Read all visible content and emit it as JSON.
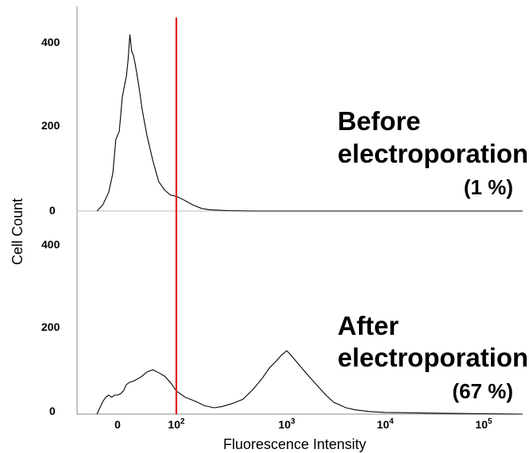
{
  "chart_data": {
    "type": "line",
    "xlabel": "Fluorescence Intensity",
    "ylabel": "Cell Count",
    "x_scale": "biexponential",
    "x_ticks": [
      {
        "value": 0,
        "label": "0"
      },
      {
        "value": 100,
        "label": "10",
        "exp": "2"
      },
      {
        "value": 1000,
        "label": "10",
        "exp": "3"
      },
      {
        "value": 10000,
        "label": "10",
        "exp": "4"
      },
      {
        "value": 100000,
        "label": "10",
        "exp": "5"
      }
    ],
    "gate": {
      "x": 100,
      "color": "#e02020"
    },
    "panels": [
      {
        "name": "before",
        "ylim": [
          0,
          450
        ],
        "y_ticks": [
          0,
          200,
          400
        ],
        "annotation": {
          "line1": "Before",
          "line2": "electroporation",
          "pct": "(1 %)"
        },
        "points": [
          [
            -35,
            0
          ],
          [
            -25,
            15
          ],
          [
            -15,
            45
          ],
          [
            -8,
            90
          ],
          [
            -3,
            170
          ],
          [
            0,
            180
          ],
          [
            3,
            190
          ],
          [
            8,
            270
          ],
          [
            12,
            300
          ],
          [
            15,
            320
          ],
          [
            18,
            360
          ],
          [
            21,
            420
          ],
          [
            24,
            380
          ],
          [
            27,
            370
          ],
          [
            30,
            350
          ],
          [
            36,
            300
          ],
          [
            42,
            240
          ],
          [
            50,
            180
          ],
          [
            60,
            120
          ],
          [
            70,
            70
          ],
          [
            80,
            50
          ],
          [
            90,
            38
          ],
          [
            100,
            35
          ],
          [
            120,
            25
          ],
          [
            140,
            15
          ],
          [
            170,
            6
          ],
          [
            200,
            3
          ],
          [
            300,
            1
          ],
          [
            500,
            0
          ],
          [
            1000,
            0
          ],
          [
            3000,
            0
          ],
          [
            10000,
            0
          ],
          [
            100000,
            0
          ],
          [
            250000,
            0
          ]
        ]
      },
      {
        "name": "after",
        "ylim": [
          0,
          450
        ],
        "y_ticks": [
          0,
          200,
          400
        ],
        "annotation": {
          "line1": "After",
          "line2": "electroporation",
          "pct": "(67 %)"
        },
        "points": [
          [
            -35,
            0
          ],
          [
            -30,
            15
          ],
          [
            -25,
            30
          ],
          [
            -20,
            40
          ],
          [
            -15,
            45
          ],
          [
            -10,
            40
          ],
          [
            -5,
            45
          ],
          [
            0,
            45
          ],
          [
            5,
            48
          ],
          [
            10,
            55
          ],
          [
            15,
            70
          ],
          [
            20,
            75
          ],
          [
            30,
            80
          ],
          [
            40,
            88
          ],
          [
            50,
            100
          ],
          [
            60,
            105
          ],
          [
            70,
            98
          ],
          [
            80,
            90
          ],
          [
            90,
            75
          ],
          [
            100,
            55
          ],
          [
            120,
            40
          ],
          [
            150,
            30
          ],
          [
            180,
            20
          ],
          [
            220,
            15
          ],
          [
            260,
            18
          ],
          [
            320,
            25
          ],
          [
            400,
            35
          ],
          [
            500,
            60
          ],
          [
            600,
            85
          ],
          [
            700,
            110
          ],
          [
            800,
            125
          ],
          [
            900,
            140
          ],
          [
            1000,
            150
          ],
          [
            1100,
            140
          ],
          [
            1300,
            120
          ],
          [
            1600,
            95
          ],
          [
            2000,
            70
          ],
          [
            2500,
            45
          ],
          [
            3000,
            28
          ],
          [
            4000,
            15
          ],
          [
            5000,
            10
          ],
          [
            7000,
            6
          ],
          [
            10000,
            4
          ],
          [
            20000,
            3
          ],
          [
            40000,
            2
          ],
          [
            100000,
            1
          ],
          [
            250000,
            0
          ]
        ]
      }
    ]
  }
}
